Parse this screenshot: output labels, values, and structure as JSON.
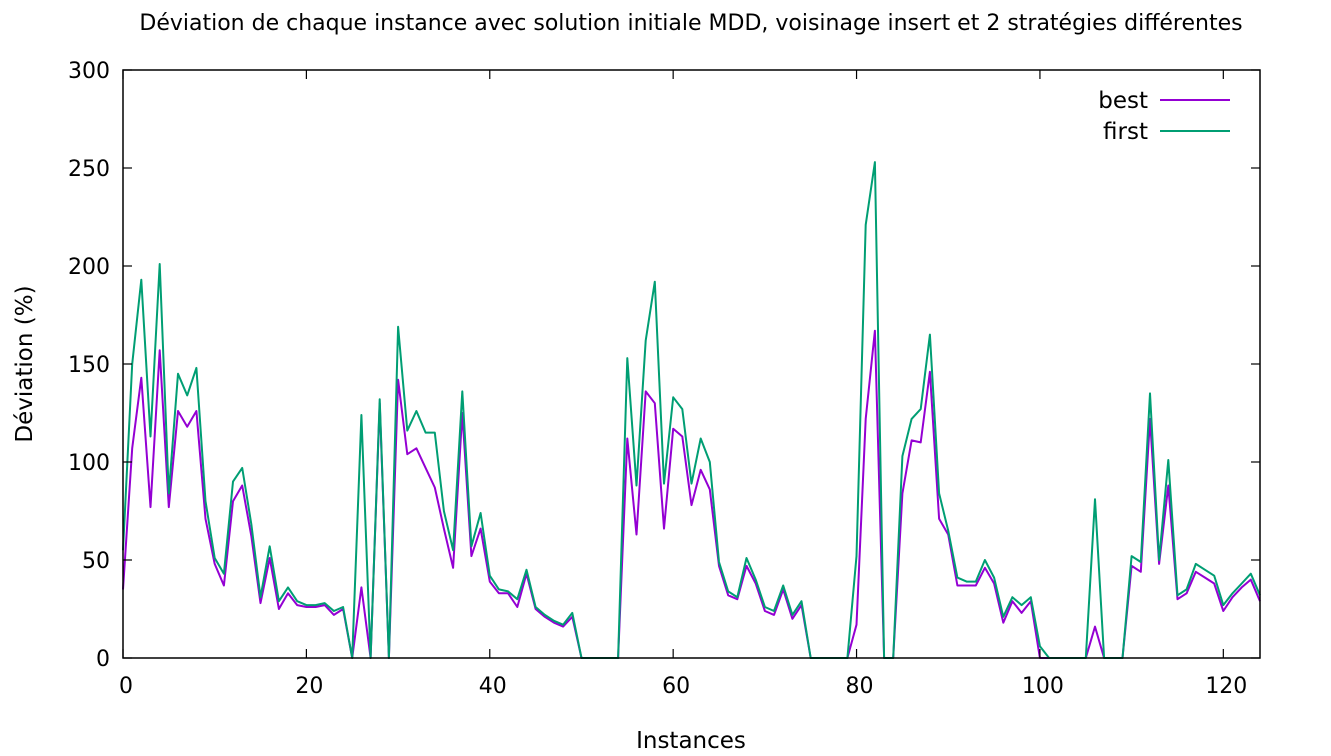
{
  "chart_data": {
    "type": "line",
    "title": "Déviation de chaque instance avec solution initiale MDD, voisinage insert et 2 stratégies différentes",
    "xlabel": "Instances",
    "ylabel": "Déviation (%)",
    "xlim": [
      0,
      124
    ],
    "ylim": [
      0,
      300
    ],
    "xticks": [
      0,
      20,
      40,
      60,
      80,
      100,
      120
    ],
    "yticks": [
      0,
      50,
      100,
      150,
      200,
      250,
      300
    ],
    "grid": false,
    "legend_position": "top-right",
    "x": [
      0,
      1,
      2,
      3,
      4,
      5,
      6,
      7,
      8,
      9,
      10,
      11,
      12,
      13,
      14,
      15,
      16,
      17,
      18,
      19,
      20,
      21,
      22,
      23,
      24,
      25,
      26,
      27,
      28,
      29,
      30,
      31,
      32,
      33,
      34,
      35,
      36,
      37,
      38,
      39,
      40,
      41,
      42,
      43,
      44,
      45,
      46,
      47,
      48,
      49,
      50,
      51,
      52,
      53,
      54,
      55,
      56,
      57,
      58,
      59,
      60,
      61,
      62,
      63,
      64,
      65,
      66,
      67,
      68,
      69,
      70,
      71,
      72,
      73,
      74,
      75,
      76,
      77,
      78,
      79,
      80,
      81,
      82,
      83,
      84,
      85,
      86,
      87,
      88,
      89,
      90,
      91,
      92,
      93,
      94,
      95,
      96,
      97,
      98,
      99,
      100,
      101,
      102,
      103,
      104,
      105,
      106,
      107,
      108,
      109,
      110,
      111,
      112,
      113,
      114,
      115,
      116,
      117,
      118,
      119,
      120,
      121,
      122,
      123,
      124
    ],
    "series": [
      {
        "name": "best",
        "color": "#9400d3",
        "values": [
          35,
          107,
          143,
          77,
          157,
          77,
          126,
          118,
          126,
          71,
          48,
          37,
          80,
          88,
          62,
          28,
          51,
          25,
          33,
          27,
          26,
          26,
          27,
          22,
          25,
          0,
          36,
          0,
          130,
          0,
          142,
          104,
          107,
          97,
          87,
          66,
          46,
          125,
          52,
          66,
          39,
          33,
          33,
          26,
          43,
          25,
          21,
          18,
          16,
          21,
          0,
          0,
          0,
          0,
          0,
          112,
          63,
          136,
          130,
          66,
          117,
          113,
          78,
          96,
          86,
          47,
          32,
          30,
          47,
          38,
          24,
          22,
          35,
          20,
          27,
          0,
          0,
          0,
          0,
          0,
          17,
          122,
          167,
          0,
          0,
          84,
          111,
          110,
          146,
          71,
          63,
          37,
          37,
          37,
          46,
          38,
          18,
          29,
          23,
          29,
          0,
          0,
          0,
          0,
          0,
          0,
          16,
          0,
          0,
          0,
          47,
          44,
          122,
          48,
          88,
          30,
          33,
          44,
          41,
          38,
          24,
          31,
          36,
          40,
          29
        ]
      },
      {
        "name": "first",
        "color": "#009e73",
        "values": [
          55,
          150,
          193,
          113,
          201,
          84,
          145,
          134,
          148,
          80,
          51,
          43,
          90,
          97,
          68,
          31,
          57,
          29,
          36,
          29,
          27,
          27,
          28,
          24,
          26,
          0,
          124,
          0,
          132,
          0,
          169,
          116,
          126,
          115,
          115,
          75,
          55,
          136,
          57,
          74,
          42,
          35,
          34,
          30,
          45,
          26,
          22,
          19,
          17,
          23,
          0,
          0,
          0,
          0,
          0,
          153,
          88,
          162,
          192,
          89,
          133,
          127,
          89,
          112,
          100,
          49,
          34,
          31,
          51,
          40,
          26,
          24,
          37,
          22,
          29,
          0,
          0,
          0,
          0,
          0,
          52,
          221,
          253,
          0,
          0,
          103,
          122,
          127,
          165,
          84,
          65,
          41,
          39,
          39,
          50,
          41,
          21,
          31,
          27,
          31,
          6,
          0,
          0,
          0,
          0,
          0,
          81,
          0,
          0,
          0,
          52,
          49,
          135,
          50,
          101,
          32,
          35,
          48,
          45,
          42,
          27,
          33,
          38,
          43,
          32
        ]
      }
    ]
  }
}
